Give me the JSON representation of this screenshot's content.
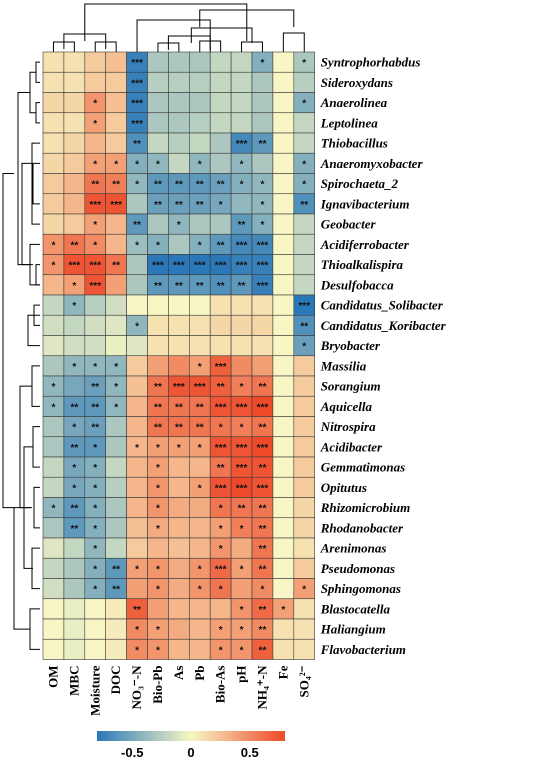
{
  "chart_data": {
    "type": "heatmap",
    "columns": [
      "OM",
      "MBC",
      "Moisture",
      "DOC",
      "NO₃⁻-N",
      "Bio-Pb",
      "As",
      "Pb",
      "Bio-As",
      "pH",
      "NH₄⁺-N",
      "Fe",
      "SO₄²⁻"
    ],
    "rows": [
      "Syntrophorhabdus",
      "Sideroxydans",
      "Anaerolinea",
      "Leptolinea",
      "Thiobacillus",
      "Anaeromyxobacter",
      "Spirochaeta_2",
      "Ignavibacterium",
      "Geobacter",
      "Acidiferrobacter",
      "Thioalkalispira",
      "Desulfobacca",
      "Candidatus_Solibacter",
      "Candidatus_Koribacter",
      "Bryobacter",
      "Massilia",
      "Sorangium",
      "Aquicella",
      "Nitrospira",
      "Acidibacter",
      "Gemmatimonas",
      "Opitutus",
      "Rhizomicrobium",
      "Rhodanobacter",
      "Arenimonas",
      "Pseudomonas",
      "Sphingomonas",
      "Blastocatella",
      "Haliangium",
      "Flavobacterium"
    ],
    "values": [
      [
        0.1,
        0.1,
        0.2,
        0.25,
        -0.75,
        -0.3,
        -0.3,
        -0.3,
        -0.2,
        -0.2,
        -0.45,
        0.0,
        -0.3
      ],
      [
        0.1,
        0.1,
        0.2,
        0.2,
        -0.75,
        -0.25,
        -0.25,
        -0.25,
        -0.2,
        -0.2,
        -0.3,
        0.0,
        -0.25
      ],
      [
        0.15,
        0.15,
        0.45,
        0.25,
        -0.75,
        -0.3,
        -0.3,
        -0.3,
        -0.2,
        -0.2,
        -0.3,
        0.0,
        -0.45
      ],
      [
        0.1,
        0.1,
        0.4,
        0.2,
        -0.75,
        -0.3,
        -0.3,
        -0.25,
        -0.2,
        -0.2,
        -0.3,
        0.0,
        -0.2
      ],
      [
        0.1,
        0.15,
        0.3,
        0.2,
        -0.65,
        -0.2,
        -0.25,
        -0.2,
        -0.3,
        -0.7,
        -0.6,
        0.0,
        -0.2
      ],
      [
        0.15,
        0.2,
        0.4,
        0.4,
        -0.45,
        -0.4,
        -0.2,
        -0.4,
        -0.3,
        -0.4,
        -0.3,
        0.0,
        -0.45
      ],
      [
        0.2,
        0.3,
        0.6,
        0.55,
        -0.4,
        -0.6,
        -0.6,
        -0.6,
        -0.55,
        -0.45,
        -0.4,
        0.0,
        -0.45
      ],
      [
        0.2,
        0.3,
        0.75,
        0.75,
        -0.3,
        -0.55,
        -0.55,
        -0.55,
        -0.5,
        -0.4,
        -0.4,
        0.0,
        -0.65
      ],
      [
        0.15,
        0.2,
        0.4,
        0.3,
        -0.6,
        -0.3,
        -0.4,
        -0.3,
        -0.3,
        -0.6,
        -0.45,
        0.0,
        -0.2
      ],
      [
        0.45,
        0.6,
        0.5,
        0.3,
        -0.35,
        -0.45,
        -0.3,
        -0.45,
        -0.6,
        -0.7,
        -0.7,
        0.0,
        -0.2
      ],
      [
        0.45,
        0.75,
        0.75,
        0.6,
        -0.3,
        -0.8,
        -0.8,
        -0.8,
        -0.8,
        -0.75,
        -0.75,
        0.0,
        -0.2
      ],
      [
        0.3,
        0.4,
        0.75,
        0.4,
        -0.3,
        -0.6,
        -0.6,
        -0.6,
        -0.65,
        -0.6,
        -0.75,
        0.0,
        -0.2
      ],
      [
        -0.2,
        -0.4,
        -0.25,
        -0.15,
        0.0,
        0.0,
        0.0,
        0.0,
        0.1,
        0.1,
        0.1,
        0.0,
        -0.8
      ],
      [
        -0.15,
        -0.2,
        -0.15,
        -0.1,
        -0.4,
        0.1,
        0.1,
        0.1,
        0.15,
        0.15,
        0.15,
        0.0,
        -0.65
      ],
      [
        -0.1,
        -0.15,
        -0.15,
        -0.05,
        -0.1,
        0.1,
        0.1,
        0.1,
        0.1,
        0.1,
        0.1,
        0.0,
        -0.55
      ],
      [
        -0.3,
        -0.4,
        -0.4,
        -0.4,
        0.2,
        0.4,
        0.5,
        0.4,
        0.7,
        0.5,
        0.4,
        0.0,
        0.2
      ],
      [
        -0.4,
        -0.5,
        -0.55,
        -0.4,
        0.25,
        0.6,
        0.75,
        0.75,
        0.7,
        0.55,
        0.6,
        0.0,
        0.2
      ],
      [
        -0.4,
        -0.6,
        -0.6,
        -0.4,
        0.3,
        0.6,
        0.6,
        0.6,
        0.75,
        0.75,
        0.8,
        0.0,
        0.2
      ],
      [
        -0.3,
        -0.5,
        -0.55,
        -0.3,
        0.3,
        0.6,
        0.6,
        0.6,
        0.6,
        0.55,
        0.6,
        0.0,
        0.2
      ],
      [
        -0.3,
        -0.6,
        -0.6,
        -0.3,
        0.3,
        0.4,
        0.4,
        0.4,
        0.75,
        0.75,
        0.8,
        0.0,
        0.2
      ],
      [
        -0.2,
        -0.5,
        -0.45,
        -0.2,
        0.3,
        0.4,
        0.3,
        0.3,
        0.6,
        0.75,
        0.75,
        0.0,
        0.2
      ],
      [
        -0.2,
        -0.5,
        -0.45,
        -0.25,
        0.3,
        0.45,
        0.3,
        0.4,
        0.75,
        0.8,
        0.75,
        0.0,
        0.2
      ],
      [
        -0.4,
        -0.6,
        -0.45,
        -0.3,
        0.3,
        0.45,
        0.35,
        0.35,
        0.6,
        0.6,
        0.6,
        0.0,
        0.15
      ],
      [
        -0.3,
        -0.6,
        -0.45,
        -0.3,
        0.25,
        0.35,
        0.3,
        0.3,
        0.4,
        0.55,
        0.6,
        0.0,
        0.15
      ],
      [
        -0.1,
        -0.2,
        -0.4,
        -0.2,
        0.2,
        0.3,
        0.25,
        0.3,
        0.45,
        0.35,
        0.6,
        0.0,
        0.1
      ],
      [
        -0.2,
        -0.3,
        -0.45,
        -0.6,
        0.4,
        0.45,
        0.35,
        0.45,
        0.65,
        0.4,
        0.6,
        0.0,
        0.2
      ],
      [
        -0.15,
        -0.3,
        -0.45,
        -0.6,
        0.4,
        0.45,
        0.35,
        0.45,
        0.6,
        0.4,
        0.5,
        0.0,
        0.4
      ],
      [
        0.0,
        -0.05,
        0.0,
        0.05,
        0.7,
        0.4,
        0.3,
        0.3,
        0.3,
        0.45,
        0.65,
        0.4,
        0.1
      ],
      [
        0.0,
        -0.05,
        0.0,
        0.05,
        0.5,
        0.4,
        0.35,
        0.3,
        0.4,
        0.4,
        0.5,
        0.1,
        0.1
      ],
      [
        0.0,
        -0.05,
        0.0,
        0.05,
        0.5,
        0.45,
        0.3,
        0.3,
        0.45,
        0.45,
        0.7,
        0.1,
        0.1
      ]
    ],
    "significance": [
      [
        "",
        "",
        "",
        "",
        "***",
        "",
        "",
        "",
        "",
        "",
        "*",
        "",
        "*"
      ],
      [
        "",
        "",
        "",
        "",
        "***",
        "",
        "",
        "",
        "",
        "",
        "",
        "",
        ""
      ],
      [
        "",
        "",
        "*",
        "",
        "***",
        "",
        "",
        "",
        "",
        "",
        "",
        "",
        "*"
      ],
      [
        "",
        "",
        "*",
        "",
        "***",
        "",
        "",
        "",
        "",
        "",
        "",
        "",
        ""
      ],
      [
        "",
        "",
        "",
        "",
        "**",
        "",
        "",
        "",
        "",
        "***",
        "**",
        "",
        ""
      ],
      [
        "",
        "",
        "*",
        "*",
        "*",
        "*",
        "",
        "*",
        "",
        "*",
        "",
        "",
        "*"
      ],
      [
        "",
        "",
        "**",
        "**",
        "*",
        "**",
        "**",
        "**",
        "**",
        "*",
        "*",
        "",
        "*"
      ],
      [
        "",
        "",
        "***",
        "***",
        "",
        "**",
        "**",
        "**",
        "*",
        "",
        "*",
        "",
        "**"
      ],
      [
        "",
        "",
        "*",
        "",
        "**",
        "",
        "*",
        "",
        "",
        "**",
        "*",
        "",
        ""
      ],
      [
        "*",
        "**",
        "*",
        "",
        "*",
        "*",
        "",
        "*",
        "**",
        "***",
        "***",
        "",
        ""
      ],
      [
        "*",
        "***",
        "***",
        "**",
        "",
        "***",
        "***",
        "***",
        "***",
        "***",
        "***",
        "",
        ""
      ],
      [
        "",
        "*",
        "***",
        "",
        "",
        "**",
        "**",
        "**",
        "**",
        "**",
        "***",
        "",
        ""
      ],
      [
        "",
        "*",
        "",
        "",
        "",
        "",
        "",
        "",
        "",
        "",
        "",
        "",
        "***"
      ],
      [
        "",
        "",
        "",
        "",
        "*",
        "",
        "",
        "",
        "",
        "",
        "",
        "",
        "**"
      ],
      [
        "",
        "",
        "",
        "",
        "",
        "",
        "",
        "",
        "",
        "",
        "",
        "",
        "*"
      ],
      [
        "",
        "*",
        "*",
        "*",
        "",
        "",
        "",
        "*",
        "***",
        "",
        "",
        "",
        ""
      ],
      [
        "*",
        "",
        "**",
        "*",
        "",
        "**",
        "***",
        "***",
        "**",
        "*",
        "**",
        "",
        ""
      ],
      [
        "*",
        "**",
        "**",
        "*",
        "",
        "**",
        "**",
        "**",
        "***",
        "***",
        "***",
        "",
        ""
      ],
      [
        "",
        "*",
        "**",
        "",
        "",
        "**",
        "**",
        "**",
        "*",
        "*",
        "**",
        "",
        ""
      ],
      [
        "",
        "**",
        "*",
        "",
        "*",
        "*",
        "*",
        "*",
        "***",
        "***",
        "***",
        "",
        ""
      ],
      [
        "",
        "*",
        "*",
        "",
        "",
        "*",
        "",
        "",
        "**",
        "***",
        "**",
        "",
        ""
      ],
      [
        "",
        "*",
        "*",
        "",
        "",
        "*",
        "",
        "*",
        "***",
        "***",
        "***",
        "",
        ""
      ],
      [
        "*",
        "**",
        "*",
        "",
        "",
        "*",
        "",
        "",
        "*",
        "**",
        "**",
        "",
        ""
      ],
      [
        "",
        "**",
        "*",
        "",
        "",
        "*",
        "",
        "",
        "*",
        "*",
        "**",
        "",
        ""
      ],
      [
        "",
        "",
        "*",
        "",
        "",
        "",
        "",
        "",
        "*",
        "",
        "**",
        "",
        ""
      ],
      [
        "",
        "",
        "*",
        "**",
        "*",
        "*",
        "",
        "*",
        "***",
        "*",
        "**",
        "",
        ""
      ],
      [
        "",
        "",
        "*",
        "**",
        "",
        "*",
        "",
        "*",
        "*",
        "",
        "*",
        "",
        "*"
      ],
      [
        "",
        "",
        "",
        "",
        "**",
        "",
        "",
        "",
        "",
        "*",
        "**",
        "*",
        ""
      ],
      [
        "",
        "",
        "",
        "",
        "*",
        "*",
        "",
        "",
        "*",
        "*",
        "**",
        "",
        ""
      ],
      [
        "",
        "",
        "",
        "",
        "*",
        "*",
        "",
        "",
        "*",
        "*",
        "**",
        "",
        ""
      ]
    ],
    "colorbar": {
      "range": [
        -0.8,
        0.8
      ],
      "ticks": [
        "-0.5",
        "0",
        "0.5"
      ],
      "tick_values": [
        -0.5,
        0,
        0.5
      ],
      "colors": [
        "#2b78b8",
        "#f7f6c4",
        "#ee4a2a"
      ]
    }
  }
}
